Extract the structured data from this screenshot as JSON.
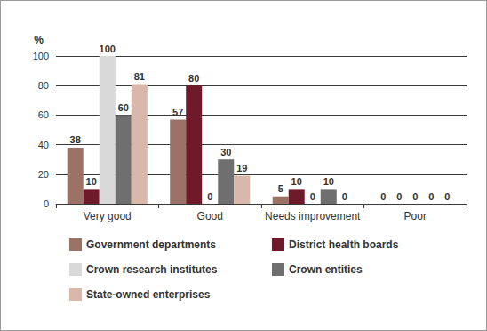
{
  "chart_data": {
    "type": "bar",
    "y_label": "%",
    "categories": [
      "Very good",
      "Good",
      "Needs improvement",
      "Poor"
    ],
    "series": [
      {
        "name": "Government departments",
        "color": "#9c7166",
        "values": [
          38,
          57,
          5,
          0
        ]
      },
      {
        "name": "District health boards",
        "color": "#6e1a2a",
        "values": [
          10,
          80,
          10,
          0
        ]
      },
      {
        "name": "Crown research institutes",
        "color": "#d9d9d9",
        "values": [
          100,
          0,
          0,
          0
        ]
      },
      {
        "name": "Crown entities",
        "color": "#6f6f6f",
        "values": [
          60,
          30,
          10,
          0
        ]
      },
      {
        "name": "State-owned enterprises",
        "color": "#d9b8ab",
        "values": [
          81,
          19,
          0,
          0
        ]
      }
    ],
    "ylim": [
      0,
      100
    ],
    "yticks": [
      0,
      20,
      40,
      60,
      80,
      100
    ],
    "grid": true,
    "data_labels": true,
    "legend": "bottom"
  }
}
